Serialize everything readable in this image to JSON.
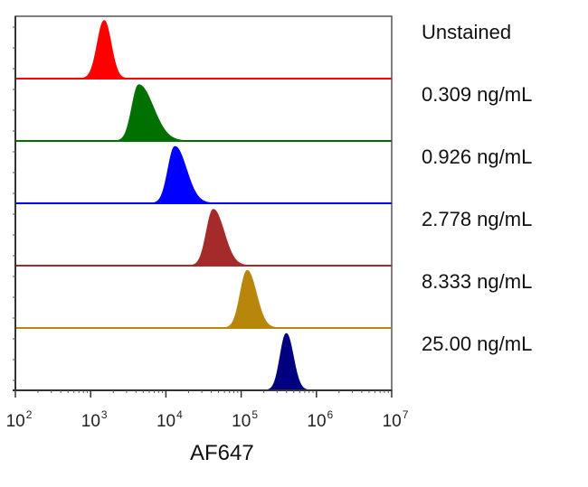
{
  "chart_data": {
    "type": "area",
    "title": "",
    "xlabel": "AF647",
    "ylabel": "",
    "xscale": "log",
    "xlim_log10": [
      2,
      7
    ],
    "x_ticks": [
      {
        "base": "10",
        "exp": "2"
      },
      {
        "base": "10",
        "exp": "3"
      },
      {
        "base": "10",
        "exp": "4"
      },
      {
        "base": "10",
        "exp": "5"
      },
      {
        "base": "10",
        "exp": "6"
      },
      {
        "base": "10",
        "exp": "7"
      }
    ],
    "layout": "stacked offset histograms",
    "series": [
      {
        "name": "Unstained",
        "color": "#ff0000",
        "peak_log10": 3.18,
        "sigma_left": 0.09,
        "sigma_right": 0.09,
        "peak_rel_height": 0.93
      },
      {
        "name": "0.309 ng/mL",
        "color": "#007000",
        "peak_log10": 3.64,
        "sigma_left": 0.09,
        "sigma_right": 0.19,
        "peak_rel_height": 0.9
      },
      {
        "name": "0.926 ng/mL",
        "color": "#0000ff",
        "peak_log10": 4.12,
        "sigma_left": 0.09,
        "sigma_right": 0.15,
        "peak_rel_height": 0.91
      },
      {
        "name": "2.778 ng/mL",
        "color": "#a52a2a",
        "peak_log10": 4.63,
        "sigma_left": 0.09,
        "sigma_right": 0.14,
        "peak_rel_height": 0.9
      },
      {
        "name": "8.333 ng/mL",
        "color": "#b8860b",
        "peak_log10": 5.08,
        "sigma_left": 0.09,
        "sigma_right": 0.12,
        "peak_rel_height": 0.92
      },
      {
        "name": "25.00 ng/mL",
        "color": "#000080",
        "peak_log10": 5.6,
        "sigma_left": 0.08,
        "sigma_right": 0.09,
        "peak_rel_height": 0.91
      }
    ]
  }
}
